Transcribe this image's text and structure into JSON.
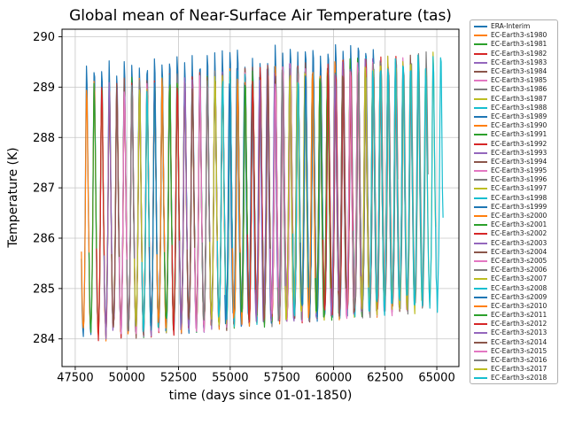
{
  "chart_data": {
    "type": "line",
    "title": "Global mean of Near-Surface Air Temperature (tas)",
    "xlabel": "time (days since 01-01-1850)",
    "ylabel": "Temperature (K)",
    "xlim": [
      46860,
      66070
    ],
    "ylim": [
      283.45,
      290.15
    ],
    "xticks": [
      47500,
      50000,
      52500,
      55000,
      57500,
      60000,
      62500,
      65000
    ],
    "yticks": [
      284,
      285,
      286,
      287,
      288,
      289,
      290
    ],
    "grid": true,
    "grid_color": "#c6c6c6",
    "legend_position": "outside-right",
    "sampling_days": 30.4375,
    "monthly_climatology_1980": [
      284.2,
      284.1,
      284.5,
      285.2,
      286.3,
      287.9,
      288.9,
      288.7,
      287.6,
      286.5,
      285.6,
      284.7
    ],
    "era_monthly_offset": [
      0,
      0,
      0.05,
      0.05,
      0.1,
      0.25,
      0.4,
      0.35,
      0.2,
      0.1,
      0.05,
      0
    ],
    "trend_K_per_year": 0.013,
    "noise_amplitude_K": 0.2,
    "series": [
      {
        "name": "ERA-Interim",
        "color": "#1f77b4",
        "start_day": 47786,
        "end_day": 61962,
        "is_era": true
      },
      {
        "name": "EC-Earth3-s1980",
        "color": "#ff7f0e",
        "start_day": 47786,
        "end_day": 51446
      },
      {
        "name": "EC-Earth3-s1981",
        "color": "#2ca02c",
        "start_day": 48151,
        "end_day": 51811
      },
      {
        "name": "EC-Earth3-s1982",
        "color": "#d62728",
        "start_day": 48517,
        "end_day": 52177
      },
      {
        "name": "EC-Earth3-s1983",
        "color": "#9467bd",
        "start_day": 48882,
        "end_day": 52542
      },
      {
        "name": "EC-Earth3-s1984",
        "color": "#8c564b",
        "start_day": 49247,
        "end_day": 52907
      },
      {
        "name": "EC-Earth3-s1985",
        "color": "#e377c2",
        "start_day": 49613,
        "end_day": 53273
      },
      {
        "name": "EC-Earth3-s1986",
        "color": "#7f7f7f",
        "start_day": 49978,
        "end_day": 53638
      },
      {
        "name": "EC-Earth3-s1987",
        "color": "#bcbd22",
        "start_day": 50343,
        "end_day": 54003
      },
      {
        "name": "EC-Earth3-s1988",
        "color": "#17becf",
        "start_day": 50708,
        "end_day": 54368
      },
      {
        "name": "EC-Earth3-s1989",
        "color": "#1f77b4",
        "start_day": 51074,
        "end_day": 54734
      },
      {
        "name": "EC-Earth3-s1990",
        "color": "#ff7f0e",
        "start_day": 51439,
        "end_day": 55099
      },
      {
        "name": "EC-Earth3-s1991",
        "color": "#2ca02c",
        "start_day": 51804,
        "end_day": 55464
      },
      {
        "name": "EC-Earth3-s1992",
        "color": "#d62728",
        "start_day": 52170,
        "end_day": 55830
      },
      {
        "name": "EC-Earth3-s1993",
        "color": "#9467bd",
        "start_day": 52535,
        "end_day": 56195
      },
      {
        "name": "EC-Earth3-s1994",
        "color": "#8c564b",
        "start_day": 52900,
        "end_day": 56560
      },
      {
        "name": "EC-Earth3-s1995",
        "color": "#e377c2",
        "start_day": 53265,
        "end_day": 56925
      },
      {
        "name": "EC-Earth3-s1996",
        "color": "#7f7f7f",
        "start_day": 53631,
        "end_day": 57291
      },
      {
        "name": "EC-Earth3-s1997",
        "color": "#bcbd22",
        "start_day": 53996,
        "end_day": 57656
      },
      {
        "name": "EC-Earth3-s1998",
        "color": "#17becf",
        "start_day": 54361,
        "end_day": 58021
      },
      {
        "name": "EC-Earth3-s1999",
        "color": "#1f77b4",
        "start_day": 54727,
        "end_day": 58387
      },
      {
        "name": "EC-Earth3-s2000",
        "color": "#ff7f0e",
        "start_day": 55092,
        "end_day": 58752
      },
      {
        "name": "EC-Earth3-s2001",
        "color": "#2ca02c",
        "start_day": 55457,
        "end_day": 59117
      },
      {
        "name": "EC-Earth3-s2002",
        "color": "#d62728",
        "start_day": 55822,
        "end_day": 59482
      },
      {
        "name": "EC-Earth3-s2003",
        "color": "#9467bd",
        "start_day": 56188,
        "end_day": 59848
      },
      {
        "name": "EC-Earth3-s2004",
        "color": "#8c564b",
        "start_day": 56553,
        "end_day": 60213
      },
      {
        "name": "EC-Earth3-s2005",
        "color": "#e377c2",
        "start_day": 56918,
        "end_day": 60578
      },
      {
        "name": "EC-Earth3-s2006",
        "color": "#7f7f7f",
        "start_day": 57284,
        "end_day": 60944
      },
      {
        "name": "EC-Earth3-s2007",
        "color": "#bcbd22",
        "start_day": 57649,
        "end_day": 61309
      },
      {
        "name": "EC-Earth3-s2008",
        "color": "#17becf",
        "start_day": 58014,
        "end_day": 61674
      },
      {
        "name": "EC-Earth3-s2009",
        "color": "#1f77b4",
        "start_day": 58379,
        "end_day": 62039
      },
      {
        "name": "EC-Earth3-s2010",
        "color": "#ff7f0e",
        "start_day": 58745,
        "end_day": 62405
      },
      {
        "name": "EC-Earth3-s2011",
        "color": "#2ca02c",
        "start_day": 59110,
        "end_day": 62770
      },
      {
        "name": "EC-Earth3-s2012",
        "color": "#d62728",
        "start_day": 59475,
        "end_day": 63135
      },
      {
        "name": "EC-Earth3-s2013",
        "color": "#9467bd",
        "start_day": 59841,
        "end_day": 63501
      },
      {
        "name": "EC-Earth3-s2014",
        "color": "#8c564b",
        "start_day": 60206,
        "end_day": 63866
      },
      {
        "name": "EC-Earth3-s2015",
        "color": "#e377c2",
        "start_day": 60571,
        "end_day": 64231
      },
      {
        "name": "EC-Earth3-s2016",
        "color": "#7f7f7f",
        "start_day": 60936,
        "end_day": 64596
      },
      {
        "name": "EC-Earth3-s2017",
        "color": "#bcbd22",
        "start_day": 61302,
        "end_day": 64962
      },
      {
        "name": "EC-Earth3-s2018",
        "color": "#17becf",
        "start_day": 61667,
        "end_day": 65327
      }
    ]
  }
}
